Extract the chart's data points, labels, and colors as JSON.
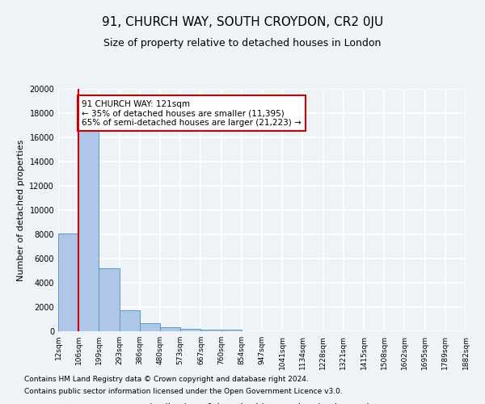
{
  "title": "91, CHURCH WAY, SOUTH CROYDON, CR2 0JU",
  "subtitle": "Size of property relative to detached houses in London",
  "xlabel": "Distribution of detached houses by size in London",
  "ylabel": "Number of detached properties",
  "bin_labels": [
    "12sqm",
    "106sqm",
    "199sqm",
    "293sqm",
    "386sqm",
    "480sqm",
    "573sqm",
    "667sqm",
    "760sqm",
    "854sqm",
    "947sqm",
    "1041sqm",
    "1134sqm",
    "1228sqm",
    "1321sqm",
    "1415sqm",
    "1508sqm",
    "1602sqm",
    "1695sqm",
    "1789sqm",
    "1882sqm"
  ],
  "bar_heights": [
    8100,
    16500,
    5200,
    1750,
    680,
    330,
    200,
    160,
    130,
    0,
    0,
    0,
    0,
    0,
    0,
    0,
    0,
    0,
    0,
    0
  ],
  "bar_color": "#aec6e8",
  "bar_edge_color": "#5a9abf",
  "property_line_x": 1,
  "property_line_color": "#cc0000",
  "ylim": [
    0,
    20000
  ],
  "yticks": [
    0,
    2000,
    4000,
    6000,
    8000,
    10000,
    12000,
    14000,
    16000,
    18000,
    20000
  ],
  "annotation_text": "91 CHURCH WAY: 121sqm\n← 35% of detached houses are smaller (11,395)\n65% of semi-detached houses are larger (21,223) →",
  "annotation_box_color": "#ffffff",
  "annotation_box_edge": "#cc0000",
  "footer_line1": "Contains HM Land Registry data © Crown copyright and database right 2024.",
  "footer_line2": "Contains public sector information licensed under the Open Government Licence v3.0.",
  "bg_color": "#eef3f8",
  "plot_bg_color": "#eef3f8",
  "grid_color": "#ffffff"
}
